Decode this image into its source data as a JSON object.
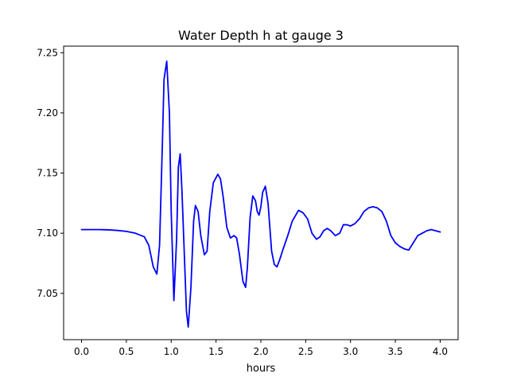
{
  "chart_data": {
    "type": "line",
    "title": "Water Depth h at gauge 3",
    "xlabel": "hours",
    "ylabel": "",
    "xlim": [
      -0.2,
      4.2
    ],
    "ylim": [
      7.0115,
      7.2555
    ],
    "xticks": [
      0.0,
      0.5,
      1.0,
      1.5,
      2.0,
      2.5,
      3.0,
      3.5,
      4.0
    ],
    "xtick_labels": [
      "0.0",
      "0.5",
      "1.0",
      "1.5",
      "2.0",
      "2.5",
      "3.0",
      "3.5",
      "4.0"
    ],
    "yticks": [
      7.05,
      7.1,
      7.15,
      7.2,
      7.25
    ],
    "ytick_labels": [
      "7.05",
      "7.10",
      "7.15",
      "7.20",
      "7.25"
    ],
    "grid": false,
    "series": [
      {
        "color": "#0000ff",
        "x": [
          0.0,
          0.2,
          0.3,
          0.4,
          0.5,
          0.6,
          0.7,
          0.75,
          0.8,
          0.84,
          0.87,
          0.9,
          0.92,
          0.95,
          0.98,
          1.0,
          1.03,
          1.06,
          1.08,
          1.1,
          1.12,
          1.15,
          1.17,
          1.19,
          1.22,
          1.25,
          1.27,
          1.3,
          1.33,
          1.37,
          1.4,
          1.43,
          1.47,
          1.52,
          1.55,
          1.58,
          1.62,
          1.66,
          1.7,
          1.73,
          1.76,
          1.8,
          1.83,
          1.85,
          1.88,
          1.91,
          1.94,
          1.96,
          1.98,
          2.0,
          2.02,
          2.05,
          2.08,
          2.1,
          2.12,
          2.15,
          2.18,
          2.21,
          2.24,
          2.3,
          2.35,
          2.42,
          2.47,
          2.52,
          2.57,
          2.62,
          2.66,
          2.7,
          2.74,
          2.78,
          2.83,
          2.88,
          2.92,
          2.96,
          3.0,
          3.05,
          3.1,
          3.15,
          3.2,
          3.25,
          3.3,
          3.35,
          3.4,
          3.45,
          3.5,
          3.55,
          3.6,
          3.65,
          3.7,
          3.75,
          3.8,
          3.85,
          3.9,
          3.95,
          4.0
        ],
        "y": [
          7.103,
          7.103,
          7.1028,
          7.1023,
          7.1015,
          7.1,
          7.097,
          7.09,
          7.072,
          7.066,
          7.09,
          7.17,
          7.228,
          7.243,
          7.2,
          7.118,
          7.044,
          7.095,
          7.155,
          7.166,
          7.135,
          7.075,
          7.035,
          7.022,
          7.055,
          7.11,
          7.123,
          7.118,
          7.098,
          7.082,
          7.085,
          7.118,
          7.142,
          7.149,
          7.145,
          7.13,
          7.105,
          7.096,
          7.098,
          7.096,
          7.083,
          7.06,
          7.055,
          7.072,
          7.113,
          7.131,
          7.127,
          7.118,
          7.115,
          7.122,
          7.134,
          7.139,
          7.125,
          7.105,
          7.085,
          7.074,
          7.072,
          7.078,
          7.085,
          7.098,
          7.11,
          7.119,
          7.117,
          7.112,
          7.1,
          7.095,
          7.097,
          7.102,
          7.104,
          7.102,
          7.098,
          7.1,
          7.107,
          7.107,
          7.106,
          7.108,
          7.112,
          7.118,
          7.121,
          7.122,
          7.121,
          7.118,
          7.11,
          7.098,
          7.092,
          7.089,
          7.087,
          7.086,
          7.092,
          7.098,
          7.1,
          7.102,
          7.103,
          7.102,
          7.101
        ]
      }
    ]
  }
}
